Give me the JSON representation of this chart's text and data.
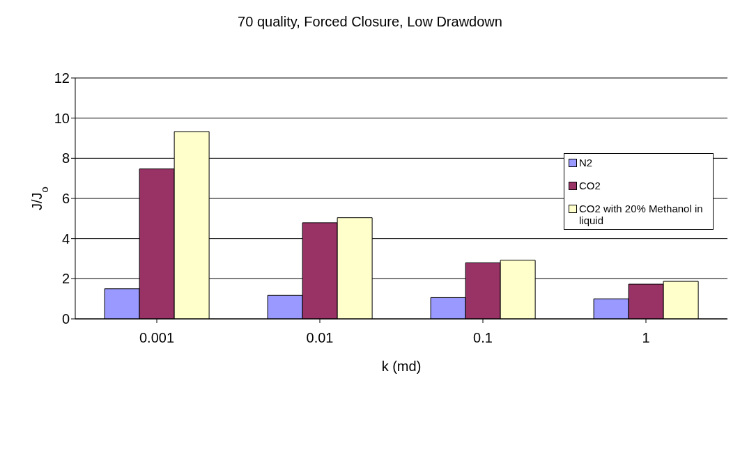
{
  "chart_data": {
    "type": "bar",
    "title": "70 quality, Forced Closure, Low Drawdown",
    "xlabel": "k (md)",
    "ylabel": "J/J$_{o}$",
    "categories": [
      "0.001",
      "0.01",
      "0.1",
      "1"
    ],
    "series": [
      {
        "name": "N2",
        "color": "#9999ff",
        "values": [
          1.5,
          1.17,
          1.06,
          1.0
        ]
      },
      {
        "name": "CO2",
        "color": "#993366",
        "values": [
          7.47,
          4.79,
          2.79,
          1.73
        ]
      },
      {
        "name": "CO2 with 20% Methanol in liquid",
        "color": "#ffffcc",
        "values": [
          9.33,
          5.04,
          2.92,
          1.87
        ]
      }
    ],
    "ylim": [
      0,
      12
    ],
    "yticks": [
      0,
      2,
      4,
      6,
      8,
      10,
      12
    ],
    "grid": "y",
    "legend": "top right"
  }
}
